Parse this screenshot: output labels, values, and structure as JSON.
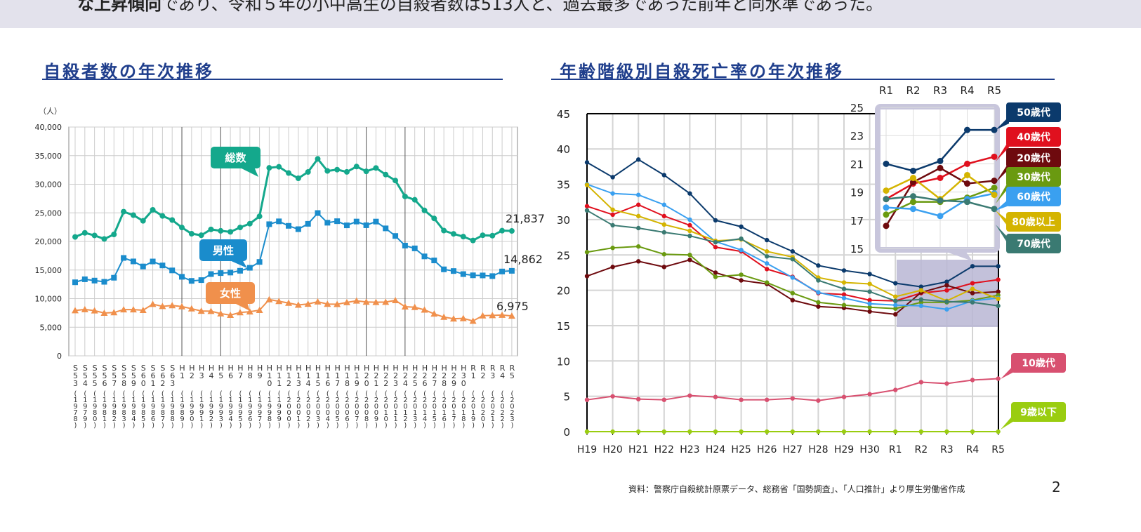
{
  "header": {
    "lead_bold": "な上昇傾向",
    "lead_rest": "であり、令和５年の小中高生の自殺者数は513人と、過去最多であった前年と同水準であった。"
  },
  "footer": {
    "source": "資料：警察庁自殺統計原票データ、総務省「国勢調査」、「人口推計」より厚生労働省作成",
    "page": "2"
  },
  "chart_data": [
    {
      "type": "line",
      "title": "自殺者数の年次推移",
      "ylabel": "（人）",
      "ylim": [
        0,
        40000
      ],
      "yticks": [
        "0",
        "5,000",
        "10,000",
        "15,000",
        "20,000",
        "25,000",
        "30,000",
        "35,000",
        "40,000"
      ],
      "categories": [
        "S53",
        "S54",
        "S55",
        "S56",
        "S57",
        "S58",
        "S59",
        "S60",
        "S61",
        "S62",
        "S63",
        "H1",
        "H2",
        "H3",
        "H4",
        "H5",
        "H6",
        "H7",
        "H8",
        "H9",
        "H10",
        "H11",
        "H12",
        "H13",
        "H14",
        "H15",
        "H16",
        "H17",
        "H18",
        "H19",
        "H20",
        "H21",
        "H22",
        "H23",
        "H24",
        "H25",
        "H26",
        "H27",
        "H28",
        "H29",
        "H30",
        "R1",
        "R2",
        "R3",
        "R4",
        "R5"
      ],
      "years": [
        "(1978)",
        "(1979)",
        "(1980)",
        "(1981)",
        "(1982)",
        "(1983)",
        "(1984)",
        "(1985)",
        "(1986)",
        "(1987)",
        "(1988)",
        "(1989)",
        "(1990)",
        "(1991)",
        "(1992)",
        "(1993)",
        "(1994)",
        "(1995)",
        "(1996)",
        "(1997)",
        "(1998)",
        "(1999)",
        "(2000)",
        "(2001)",
        "(2002)",
        "(2003)",
        "(2004)",
        "(2005)",
        "(2006)",
        "(2007)",
        "(2008)",
        "(2009)",
        "(2010)",
        "(2011)",
        "(2012)",
        "(2013)",
        "(2014)",
        "(2015)",
        "(2016)",
        "(2017)",
        "(2018)",
        "(2019)",
        "(2020)",
        "(2021)",
        "(2022)",
        "(2023)"
      ],
      "series": [
        {
          "name": "総数",
          "color": "#14a88c",
          "marker": "circle",
          "end_label": "21,837",
          "values": [
            20788,
            21503,
            21048,
            20434,
            21228,
            25202,
            24596,
            23599,
            25524,
            24460,
            23742,
            22436,
            21346,
            21084,
            22104,
            21851,
            21679,
            22445,
            23104,
            24391,
            32863,
            33048,
            31957,
            31042,
            32143,
            34427,
            32325,
            32552,
            32155,
            33093,
            32249,
            32845,
            31690,
            30651,
            27858,
            27283,
            25427,
            24025,
            21897,
            21321,
            20840,
            20169,
            21081,
            21007,
            21881,
            21837
          ]
        },
        {
          "name": "男性",
          "color": "#1a8ccc",
          "marker": "square",
          "end_label": "14,862",
          "values": [
            12859,
            13386,
            13155,
            12942,
            13654,
            17116,
            16508,
            15624,
            16497,
            15802,
            14934,
            13818,
            13102,
            13242,
            14296,
            14468,
            14560,
            14874,
            15393,
            16416,
            23013,
            23512,
            22727,
            22144,
            23080,
            24963,
            23272,
            23540,
            22813,
            23478,
            22831,
            23472,
            22283,
            20955,
            19273,
            18787,
            17386,
            16681,
            15121,
            14826,
            14290,
            14078,
            14055,
            13939,
            14746,
            14862
          ]
        },
        {
          "name": "女性",
          "color": "#f0904c",
          "marker": "triangle",
          "end_label": "6,975",
          "values": [
            7929,
            8117,
            7893,
            7492,
            7574,
            8086,
            8088,
            7975,
            9027,
            8658,
            8808,
            8618,
            8244,
            7842,
            7808,
            7383,
            7119,
            7571,
            7711,
            7975,
            9850,
            9536,
            9230,
            8898,
            9063,
            9464,
            9053,
            9012,
            9342,
            9615,
            9418,
            9373,
            9407,
            9696,
            8585,
            8496,
            8041,
            7344,
            6776,
            6495,
            6550,
            6091,
            7026,
            7068,
            7135,
            6975
          ]
        }
      ]
    },
    {
      "type": "line",
      "title": "年齢階級別自殺死亡率の年次推移",
      "ylim": [
        0,
        45
      ],
      "yticks": [
        "0",
        "5",
        "10",
        "15",
        "20",
        "25",
        "30",
        "35",
        "40",
        "45"
      ],
      "categories": [
        "H19",
        "H20",
        "H21",
        "H22",
        "H23",
        "H24",
        "H25",
        "H26",
        "H27",
        "H28",
        "H29",
        "H30",
        "R1",
        "R2",
        "R3",
        "R4",
        "R5"
      ],
      "inset": {
        "categories": [
          "R1",
          "R2",
          "R3",
          "R4",
          "R5"
        ],
        "ylim": [
          15,
          25
        ],
        "yticks": [
          "15",
          "17",
          "19",
          "21",
          "23",
          "25"
        ]
      },
      "series": [
        {
          "name": "50歳代",
          "color": "#0b3a6c",
          "values": [
            38.1,
            36.0,
            38.5,
            36.3,
            33.7,
            29.9,
            29.0,
            27.1,
            25.5,
            23.5,
            22.8,
            22.3,
            21.0,
            20.5,
            21.2,
            23.4,
            23.4
          ]
        },
        {
          "name": "40歳代",
          "color": "#e0101e",
          "values": [
            31.9,
            30.7,
            32.1,
            30.5,
            29.2,
            26.1,
            25.5,
            23.0,
            21.9,
            19.6,
            19.4,
            18.6,
            18.5,
            19.6,
            20.0,
            21.0,
            21.5
          ]
        },
        {
          "name": "20歳代",
          "color": "#6e0a0e",
          "values": [
            22.0,
            23.3,
            24.1,
            23.3,
            24.3,
            22.5,
            21.4,
            20.9,
            18.6,
            17.7,
            17.5,
            17.0,
            16.6,
            19.7,
            20.7,
            19.6,
            19.8
          ]
        },
        {
          "name": "30歳代",
          "color": "#6a9a10",
          "values": [
            25.4,
            26.0,
            26.2,
            25.1,
            25.0,
            21.9,
            22.2,
            21.1,
            19.6,
            18.3,
            17.9,
            17.6,
            17.4,
            18.3,
            18.3,
            18.6,
            19.3
          ]
        },
        {
          "name": "60歳代",
          "color": "#3aa0f0",
          "values": [
            35.0,
            33.7,
            33.5,
            32.1,
            30.0,
            26.9,
            25.7,
            23.8,
            21.8,
            19.7,
            18.9,
            18.1,
            17.9,
            17.8,
            17.3,
            18.5,
            18.9
          ]
        },
        {
          "name": "80歳以上",
          "color": "#d4b400",
          "values": [
            34.9,
            31.4,
            30.5,
            29.3,
            28.4,
            27.0,
            27.2,
            25.5,
            24.7,
            21.8,
            21.1,
            20.9,
            19.1,
            20.0,
            18.5,
            20.2,
            18.8
          ]
        },
        {
          "name": "70歳代",
          "color": "#3a7a72",
          "values": [
            31.3,
            29.2,
            28.8,
            28.2,
            27.7,
            26.8,
            27.3,
            24.8,
            24.4,
            21.4,
            20.2,
            19.8,
            18.5,
            18.7,
            18.4,
            18.3,
            17.8
          ]
        },
        {
          "name": "10歳代",
          "color": "#d85070",
          "values": [
            4.5,
            5.0,
            4.6,
            4.5,
            5.1,
            4.9,
            4.5,
            4.5,
            4.7,
            4.4,
            4.9,
            5.3,
            5.9,
            7.0,
            6.8,
            7.3,
            7.5
          ]
        },
        {
          "name": "9歳以下",
          "color": "#9acd10",
          "values": [
            0,
            0,
            0,
            0,
            0,
            0,
            0,
            0,
            0,
            0,
            0,
            0,
            0,
            0,
            0,
            0,
            0
          ]
        }
      ]
    }
  ]
}
